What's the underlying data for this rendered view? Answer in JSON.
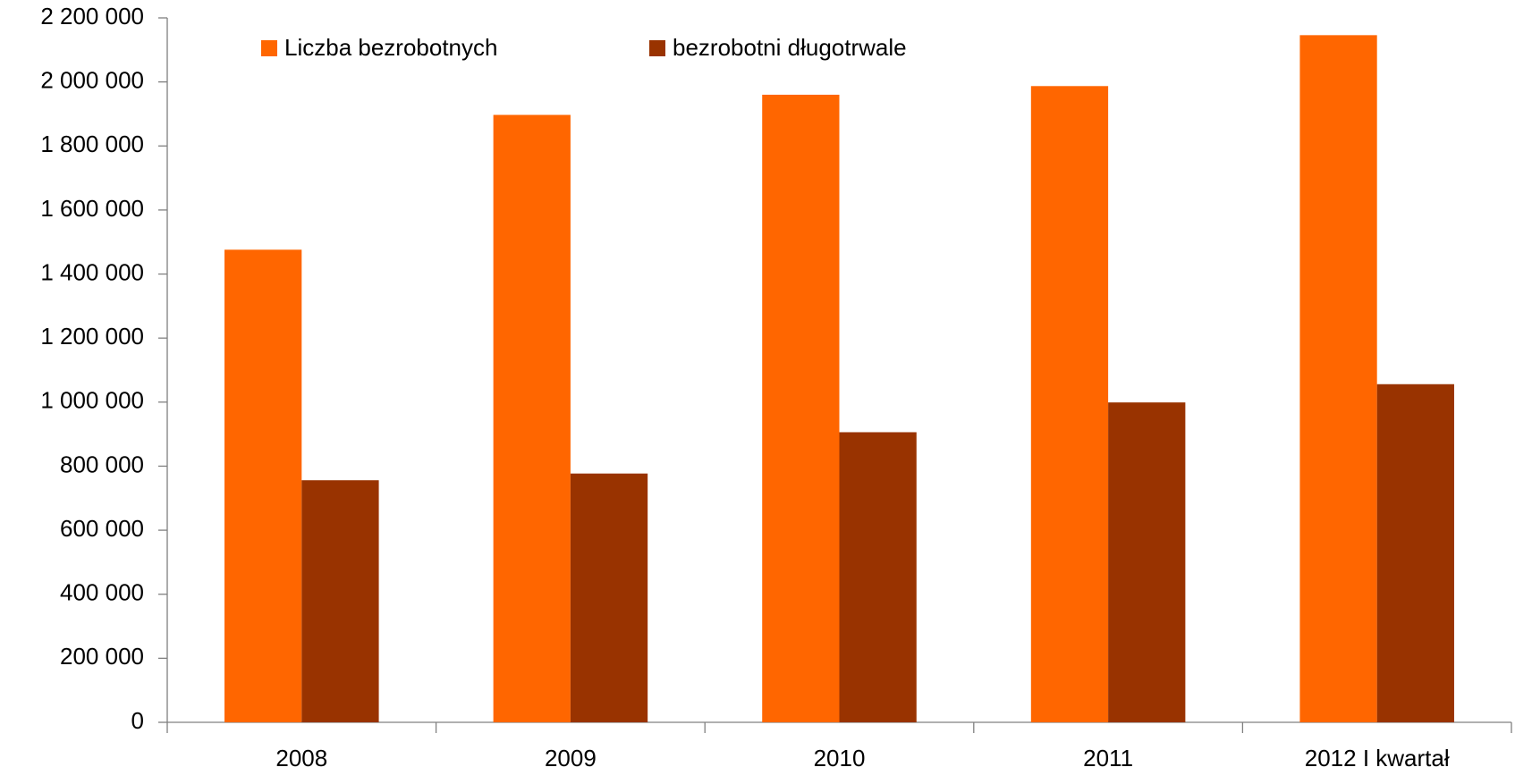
{
  "chart_data": {
    "type": "bar",
    "categories": [
      "2008",
      "2009",
      "2010",
      "2011",
      "2012 I kwartał"
    ],
    "series": [
      {
        "name": "Liczba bezrobotnych",
        "color": "#ff6600",
        "values": [
          1476000,
          1897000,
          1960000,
          1987000,
          2146000
        ]
      },
      {
        "name": "bezrobotni długotrwale",
        "color": "#993300",
        "values": [
          756000,
          777000,
          906000,
          999000,
          1056000
        ]
      }
    ],
    "ylim": [
      0,
      2200000
    ],
    "yticks": [
      0,
      {
        "value": 200000,
        "label": "200 000"
      },
      {
        "value": 400000,
        "label": "400 000"
      },
      {
        "value": 600000,
        "label": "600 000"
      },
      {
        "value": 800000,
        "label": "800 000"
      },
      {
        "value": 1000000,
        "label": "1 000 000"
      },
      {
        "value": 1200000,
        "label": "1 200 000"
      },
      {
        "value": 1400000,
        "label": "1 400 000"
      },
      {
        "value": 1600000,
        "label": "1 600 000"
      },
      {
        "value": 1800000,
        "label": "1 800 000"
      },
      {
        "value": 2000000,
        "label": "2 000 000"
      },
      {
        "value": 2200000,
        "label": "2 200 000"
      }
    ],
    "grid": false,
    "legend": "top"
  }
}
